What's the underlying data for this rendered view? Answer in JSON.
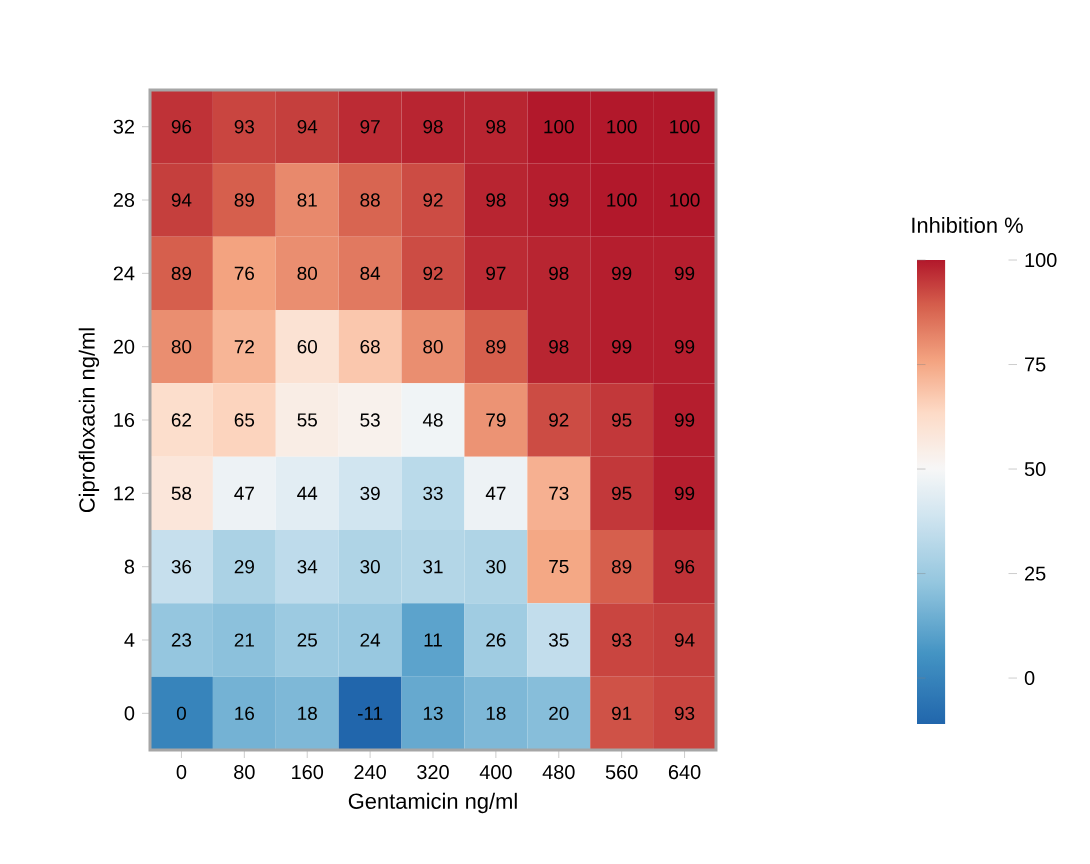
{
  "chart_data": {
    "type": "heatmap",
    "xlabel": "Gentamicin ng/ml",
    "ylabel": "Ciprofloxacin ng/ml",
    "clabel": "Inhibition %",
    "categories": [
      "0",
      "80",
      "160",
      "240",
      "320",
      "400",
      "480",
      "560",
      "640"
    ],
    "y_categories": [
      "32",
      "28",
      "24",
      "20",
      "16",
      "12",
      "8",
      "4",
      "0"
    ],
    "cells": [
      [
        96,
        93,
        94,
        97,
        98,
        98,
        100,
        100,
        100
      ],
      [
        94,
        89,
        81,
        88,
        92,
        98,
        99,
        100,
        100
      ],
      [
        89,
        76,
        80,
        84,
        92,
        97,
        98,
        99,
        99
      ],
      [
        80,
        72,
        60,
        68,
        80,
        89,
        98,
        99,
        99
      ],
      [
        62,
        65,
        55,
        53,
        48,
        79,
        92,
        95,
        99
      ],
      [
        58,
        47,
        44,
        39,
        33,
        47,
        73,
        95,
        99
      ],
      [
        36,
        29,
        34,
        30,
        31,
        30,
        75,
        89,
        96
      ],
      [
        23,
        21,
        25,
        24,
        11,
        26,
        35,
        93,
        94
      ],
      [
        0,
        16,
        18,
        -11,
        13,
        18,
        20,
        91,
        93
      ]
    ],
    "clim": [
      -11,
      100
    ],
    "cticks": [
      0,
      25,
      50,
      75,
      100
    ],
    "data_labels": true
  }
}
